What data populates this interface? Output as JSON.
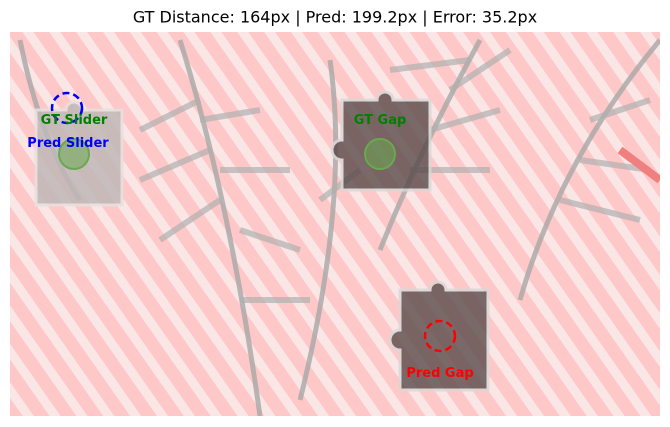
{
  "header": {
    "title": "GT Distance: 164px | Pred: 199.2px | Error: 35.2px"
  },
  "labels": {
    "gt_slider": "GT Slider",
    "pred_slider": "Pred Slider",
    "gt_gap": "GT Gap",
    "pred_gap": "Pred Gap"
  }
}
